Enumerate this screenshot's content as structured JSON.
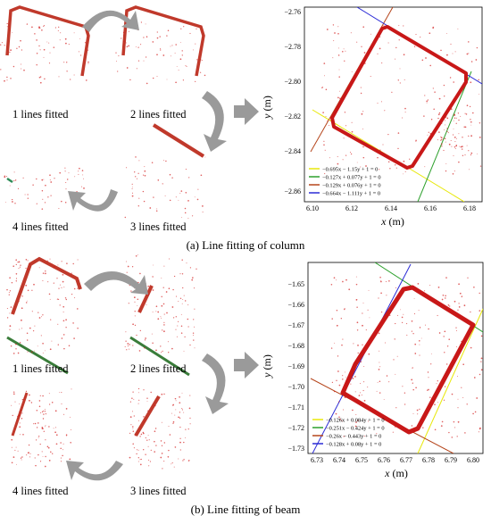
{
  "figure": {
    "panel_a": {
      "caption": "(a) Line fitting of column",
      "steps": [
        "1 lines fitted",
        "2 lines fitted",
        "3 lines fitted",
        "4 lines fitted"
      ],
      "chart": {
        "xlabel_var": "x",
        "xlabel_unit": " (m)",
        "ylabel_var": "y",
        "ylabel_unit": " (m)",
        "xticks": [
          "6.10",
          "6.12",
          "6.14",
          "6.16",
          "6.18"
        ],
        "yticks": [
          "−2.76",
          "−2.78",
          "−2.80",
          "−2.82",
          "−2.84",
          "−2.86"
        ],
        "legend": [
          {
            "text": "−0.695x − 1.15y + 1 = 0",
            "color": "#e8e80a"
          },
          {
            "text": "−0.127x + 0.077y + 1 = 0",
            "color": "#2ca02c"
          },
          {
            "text": "−0.129x + 0.076y + 1 = 0",
            "color": "#b5451b"
          },
          {
            "text": "−0.664x − 1.111y + 1 = 0",
            "color": "#2b2bd6"
          }
        ]
      }
    },
    "panel_b": {
      "caption": "(b) Line fitting of beam",
      "steps": [
        "1 lines fitted",
        "2 lines fitted",
        "3 lines fitted",
        "4 lines fitted"
      ],
      "chart": {
        "xlabel_var": "x",
        "xlabel_unit": " (m)",
        "ylabel_var": "y",
        "ylabel_unit": " (m)",
        "xticks": [
          "6.73",
          "6.74",
          "6.75",
          "6.76",
          "6.77",
          "6.78",
          "6.79",
          "6.80"
        ],
        "yticks": [
          "−1.65",
          "−1.66",
          "−1.67",
          "−1.68",
          "−1.69",
          "−1.70",
          "−1.71",
          "−1.72",
          "−1.73"
        ],
        "legend": [
          {
            "text": "−0.126x + 0.084y + 1 = 0",
            "color": "#e8e80a"
          },
          {
            "text": "−0.251x − 0.424y + 1 = 0",
            "color": "#2ca02c"
          },
          {
            "text": "−0.26x − 0.443y + 1 = 0",
            "color": "#b5451b"
          },
          {
            "text": "−0.128x + 0.08y + 1 = 0",
            "color": "#2b2bd6"
          }
        ]
      }
    },
    "colors": {
      "points": "#d11a1a",
      "arrow": "#9a9a9a",
      "frame": "#000000"
    }
  }
}
